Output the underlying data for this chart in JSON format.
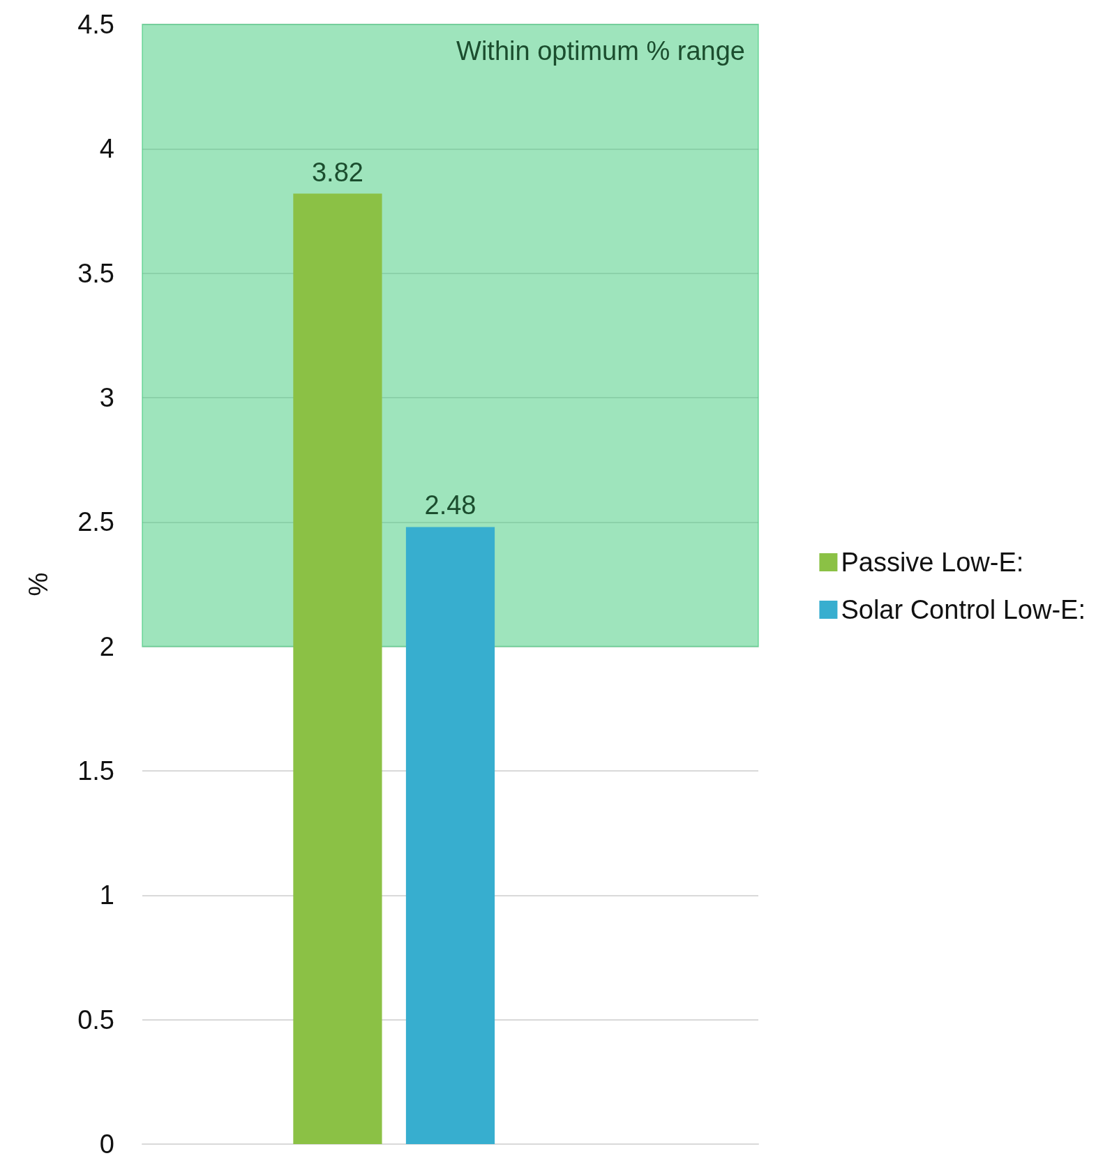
{
  "chart_data": {
    "type": "bar",
    "ylabel": "%",
    "categories": [
      null
    ],
    "series": [
      {
        "name": "Passive Low-E:",
        "color": "#8bc145",
        "values": [
          3.82
        ]
      },
      {
        "name": "Solar Control Low-E:",
        "color": "#37aecf",
        "values": [
          2.48
        ]
      }
    ],
    "ylim": [
      0,
      4.5
    ],
    "yticks": [
      0,
      0.5,
      1,
      1.5,
      2,
      2.5,
      3,
      3.5,
      4,
      4.5
    ],
    "bands": [
      {
        "axis": "y",
        "from": 2,
        "to": 4.5,
        "label": "Within optimum % range",
        "color": "#3ec97a"
      }
    ],
    "data_labels": true,
    "grid": "y",
    "legend": "right"
  }
}
